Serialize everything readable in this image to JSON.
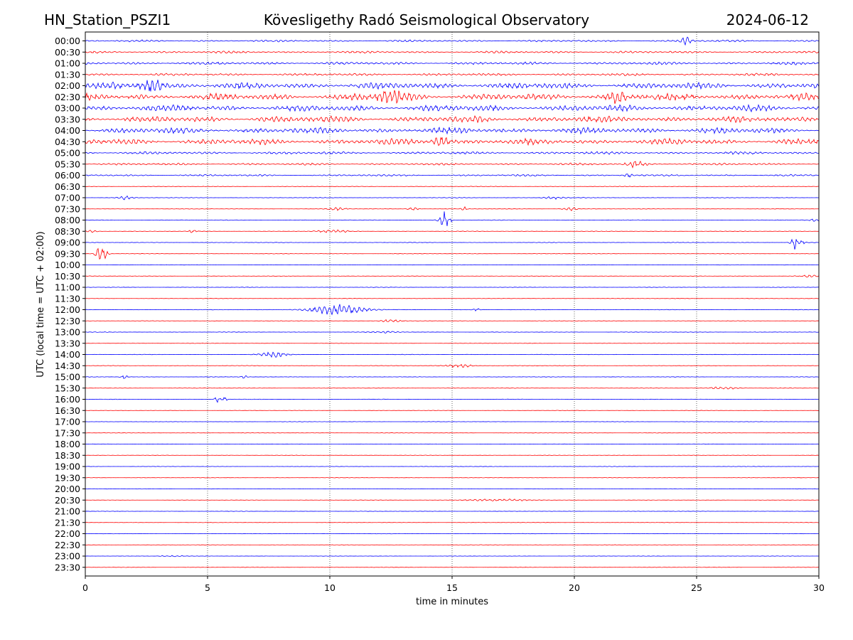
{
  "header": {
    "station": "HN_Station_PSZI1",
    "observatory": "Kövesligethy Radó Seismological Observatory",
    "date": "2024-06-12"
  },
  "colors": {
    "even_rows": "#0000ff",
    "odd_rows": "#ff0000",
    "frame": "#000000",
    "grid": "#000000"
  },
  "chart_data": {
    "type": "line",
    "title": "Kövesligethy Radó Seismological Observatory",
    "xlabel": "time in minutes",
    "ylabel": "UTC (local time = UTC + 02:00)",
    "xlim": [
      0,
      30
    ],
    "x_ticks": [
      0,
      5,
      10,
      15,
      20,
      25,
      30
    ],
    "grid": "vertical dotted lines at x = 5, 10, 15, 20, 25",
    "row_labels": [
      "00:00",
      "00:30",
      "01:00",
      "01:30",
      "02:00",
      "02:30",
      "03:00",
      "03:30",
      "04:00",
      "04:30",
      "05:00",
      "05:30",
      "06:00",
      "06:30",
      "07:00",
      "07:30",
      "08:00",
      "08:30",
      "09:00",
      "09:30",
      "10:00",
      "10:30",
      "11:00",
      "11:30",
      "12:00",
      "12:30",
      "13:00",
      "13:30",
      "14:00",
      "14:30",
      "15:00",
      "15:30",
      "16:00",
      "16:30",
      "17:00",
      "17:30",
      "18:00",
      "18:30",
      "19:00",
      "19:30",
      "20:00",
      "20:30",
      "21:00",
      "21:30",
      "22:00",
      "22:30",
      "23:00",
      "23:30"
    ],
    "noise_level": [
      0.2,
      0.22,
      0.28,
      0.25,
      0.65,
      0.7,
      0.65,
      0.65,
      0.6,
      0.6,
      0.28,
      0.22,
      0.18,
      0.06,
      0.06,
      0.05,
      0.06,
      0.06,
      0.05,
      0.05,
      0.04,
      0.05,
      0.05,
      0.05,
      0.05,
      0.05,
      0.05,
      0.04,
      0.05,
      0.05,
      0.05,
      0.05,
      0.05,
      0.04,
      0.04,
      0.04,
      0.04,
      0.04,
      0.04,
      0.04,
      0.04,
      0.04,
      0.04,
      0.04,
      0.04,
      0.04,
      0.04,
      0.04
    ],
    "events": [
      {
        "row": 0,
        "t": 24.6,
        "amp": 0.7,
        "dur": 0.3
      },
      {
        "row": 4,
        "t": 2.7,
        "amp": 1.2,
        "dur": 0.6
      },
      {
        "row": 5,
        "t": 12.5,
        "amp": 1.0,
        "dur": 0.8
      },
      {
        "row": 5,
        "t": 21.8,
        "amp": 1.0,
        "dur": 0.5
      },
      {
        "row": 9,
        "t": 14.5,
        "amp": 1.0,
        "dur": 0.5
      },
      {
        "row": 11,
        "t": 22.5,
        "amp": 0.6,
        "dur": 0.5
      },
      {
        "row": 12,
        "t": 22.2,
        "amp": 0.4,
        "dur": 0.2
      },
      {
        "row": 14,
        "t": 1.6,
        "amp": 0.35,
        "dur": 0.4
      },
      {
        "row": 14,
        "t": 19.2,
        "amp": 0.25,
        "dur": 0.6
      },
      {
        "row": 15,
        "t": 10.3,
        "amp": 0.3,
        "dur": 0.5
      },
      {
        "row": 15,
        "t": 13.4,
        "amp": 0.35,
        "dur": 0.3
      },
      {
        "row": 15,
        "t": 15.5,
        "amp": 0.35,
        "dur": 0.2
      },
      {
        "row": 15,
        "t": 19.8,
        "amp": 0.35,
        "dur": 0.4
      },
      {
        "row": 16,
        "t": 14.7,
        "amp": 1.6,
        "dur": 0.3
      },
      {
        "row": 16,
        "t": 29.8,
        "amp": 0.2,
        "dur": 0.5
      },
      {
        "row": 17,
        "t": 0.3,
        "amp": 0.2,
        "dur": 0.4
      },
      {
        "row": 17,
        "t": 4.4,
        "amp": 0.5,
        "dur": 0.2
      },
      {
        "row": 17,
        "t": 10.2,
        "amp": 0.25,
        "dur": 1.0
      },
      {
        "row": 18,
        "t": 29.1,
        "amp": 1.4,
        "dur": 0.3
      },
      {
        "row": 19,
        "t": 0.65,
        "amp": 1.6,
        "dur": 0.3
      },
      {
        "row": 21,
        "t": 29.5,
        "amp": 0.2,
        "dur": 0.6
      },
      {
        "row": 24,
        "t": 10.3,
        "amp": 1.0,
        "dur": 1.5
      },
      {
        "row": 24,
        "t": 16.0,
        "amp": 0.3,
        "dur": 0.2
      },
      {
        "row": 25,
        "t": 12.5,
        "amp": 0.3,
        "dur": 0.6
      },
      {
        "row": 26,
        "t": 12.3,
        "amp": 0.15,
        "dur": 0.8
      },
      {
        "row": 28,
        "t": 7.7,
        "amp": 0.45,
        "dur": 0.8
      },
      {
        "row": 29,
        "t": 15.3,
        "amp": 0.4,
        "dur": 0.7
      },
      {
        "row": 30,
        "t": 1.6,
        "amp": 0.45,
        "dur": 0.2
      },
      {
        "row": 30,
        "t": 6.5,
        "amp": 0.3,
        "dur": 0.15
      },
      {
        "row": 31,
        "t": 26.1,
        "amp": 0.25,
        "dur": 0.8
      },
      {
        "row": 32,
        "t": 5.4,
        "amp": 0.55,
        "dur": 0.15
      },
      {
        "row": 32,
        "t": 5.7,
        "amp": 0.45,
        "dur": 0.15
      },
      {
        "row": 41,
        "t": 16.8,
        "amp": 0.18,
        "dur": 2.0
      },
      {
        "row": 46,
        "t": 3.5,
        "amp": 0.1,
        "dur": 0.6
      }
    ]
  }
}
